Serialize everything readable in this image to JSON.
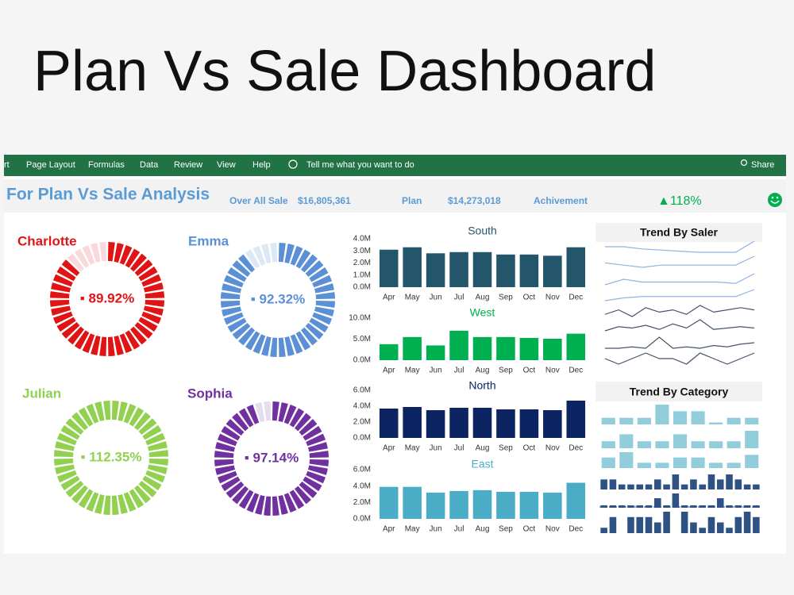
{
  "title": "Plan Vs Sale Dashboard",
  "ribbon": {
    "items": [
      "rt",
      "Page Layout",
      "Formulas",
      "Data",
      "Review",
      "View",
      "Help"
    ],
    "search": "Tell me what you want to do",
    "share": "Share"
  },
  "summary": {
    "title": "For Plan Vs Sale Analysis",
    "items": [
      {
        "label": "Over All Sale",
        "value": "$16,805,361"
      },
      {
        "label": "Plan",
        "value": "$14,273,018"
      },
      {
        "label": "Achivement",
        "value": "▲118%"
      }
    ]
  },
  "donuts": [
    {
      "name": "Charlotte",
      "value": 89.92,
      "value_label": "▪ 89.92%",
      "color": "#e01414",
      "track_color": "#f9d9dc"
    },
    {
      "name": "Emma",
      "value": 92.32,
      "value_label": "▪ 92.32%",
      "color": "#5b8fd6",
      "track_color": "#dde8f6"
    },
    {
      "name": "Julian",
      "value": 112.35,
      "value_label": "▪ 112.35%",
      "color": "#92d050",
      "track_color": "#e8f4dc"
    },
    {
      "name": "Sophia",
      "value": 97.14,
      "value_label": "▪ 97.14%",
      "color": "#7030a0",
      "track_color": "#e6dcf0"
    }
  ],
  "chart_data": [
    {
      "type": "bar",
      "title": "South",
      "color": "#23566a",
      "categories": [
        "Apr",
        "May",
        "Jun",
        "Jul",
        "Aug",
        "Sep",
        "Oct",
        "Nov",
        "Dec"
      ],
      "values": [
        3.1,
        3.3,
        2.8,
        2.9,
        2.9,
        2.7,
        2.7,
        2.6,
        3.3
      ],
      "ylim": [
        0,
        4
      ],
      "yticks": [
        {
          "value": 0,
          "label": "0.0M"
        },
        {
          "value": 1,
          "label": "1.0M"
        },
        {
          "value": 2,
          "label": "2.0M"
        },
        {
          "value": 3,
          "label": "3.0M"
        },
        {
          "value": 4,
          "label": "4.0M"
        }
      ]
    },
    {
      "type": "bar",
      "title": "West",
      "color": "#00b050",
      "categories": [
        "Apr",
        "May",
        "Jun",
        "Jul",
        "Aug",
        "Sep",
        "Oct",
        "Nov",
        "Dec"
      ],
      "values": [
        3.8,
        5.5,
        3.5,
        7,
        5.5,
        5.5,
        5.3,
        5.1,
        6.3
      ],
      "ylim": [
        0,
        10
      ],
      "yticks": [
        {
          "value": 0,
          "label": "0.0M"
        },
        {
          "value": 5,
          "label": "5.0M"
        },
        {
          "value": 10,
          "label": "10.0M"
        }
      ]
    },
    {
      "type": "bar",
      "title": "North",
      "color": "#0c2462",
      "categories": [
        "Apr",
        "May",
        "Jun",
        "Jul",
        "Aug",
        "Sep",
        "Oct",
        "Nov",
        "Dec"
      ],
      "values": [
        3.7,
        3.9,
        3.5,
        3.8,
        3.8,
        3.6,
        3.6,
        3.5,
        4.7
      ],
      "ylim": [
        0,
        6
      ],
      "yticks": [
        {
          "value": 0,
          "label": "0.0M"
        },
        {
          "value": 2,
          "label": "2.0M"
        },
        {
          "value": 4,
          "label": "4.0M"
        },
        {
          "value": 6,
          "label": "6.0M"
        }
      ]
    },
    {
      "type": "bar",
      "title": "East",
      "color": "#4bacc6",
      "categories": [
        "Apr",
        "May",
        "Jun",
        "Jul",
        "Aug",
        "Sep",
        "Oct",
        "Nov",
        "Dec"
      ],
      "values": [
        3.9,
        3.9,
        3.2,
        3.4,
        3.5,
        3.3,
        3.3,
        3.2,
        4.4
      ],
      "ylim": [
        0,
        6
      ],
      "yticks": [
        {
          "value": 0,
          "label": "0.0M"
        },
        {
          "value": 2,
          "label": "2.0M"
        },
        {
          "value": 4,
          "label": "4.0M"
        },
        {
          "value": 6,
          "label": "6.0M"
        }
      ]
    }
  ],
  "trend_by_saler": {
    "title": "Trend By Saler",
    "lines": [
      {
        "color": "#8eb4e3",
        "values": [
          5,
          5,
          4.8,
          4.7,
          4.6,
          4.5,
          4.5,
          4.5,
          5.5
        ]
      },
      {
        "color": "#8eb4e3",
        "values": [
          5,
          4.8,
          4.6,
          4.8,
          4.8,
          4.8,
          4.8,
          4.8,
          5.6
        ]
      },
      {
        "color": "#8eb4e3",
        "values": [
          4.6,
          5,
          4.8,
          4.8,
          4.8,
          4.8,
          4.8,
          4.7,
          5.4
        ]
      },
      {
        "color": "#8eb4e3",
        "values": [
          4.5,
          4.7,
          4.8,
          4.8,
          4.8,
          4.8,
          4.8,
          4.8,
          5.3
        ]
      },
      {
        "color": "#44546a",
        "values": [
          5,
          5.2,
          4.9,
          5.3,
          5.1,
          5.2,
          5,
          5.4,
          5.1,
          5.2,
          5.3,
          5.2
        ]
      },
      {
        "color": "#44546a",
        "values": [
          4.8,
          5.1,
          5,
          5.2,
          4.9,
          5.3,
          5,
          5.6,
          4.9,
          5,
          5.1,
          5
        ]
      },
      {
        "color": "#44546a",
        "values": [
          5,
          5,
          5.1,
          5,
          5.8,
          5,
          5.1,
          5,
          5.2,
          5.1,
          5.3,
          5.4
        ]
      },
      {
        "color": "#44546a",
        "values": [
          5,
          4.9,
          5,
          5.1,
          5,
          5,
          4.9,
          5.1,
          5,
          4.9,
          5,
          5.1
        ]
      }
    ]
  },
  "trend_by_category": {
    "title": "Trend By Category",
    "rows": [
      {
        "color": "#92cddc",
        "values": [
          1,
          1,
          1,
          3,
          2,
          2,
          0.3,
          1,
          1
        ]
      },
      {
        "color": "#92cddc",
        "values": [
          1,
          2,
          1,
          1,
          2,
          1,
          1,
          1,
          2.5
        ]
      },
      {
        "color": "#92cddc",
        "values": [
          2,
          3,
          1,
          1,
          2,
          2,
          1,
          1,
          2.5
        ]
      },
      {
        "color": "#2e5284",
        "values": [
          2,
          2,
          1,
          1,
          1,
          1,
          2,
          1,
          3,
          1,
          2,
          1,
          3,
          2,
          3,
          2,
          1,
          1
        ]
      },
      {
        "color": "#2e5284",
        "values": [
          0.5,
          0.5,
          0.5,
          0.5,
          0.5,
          0.5,
          2,
          0.5,
          3,
          0.5,
          0.5,
          0.5,
          0.5,
          2,
          0.5,
          0.5,
          0.5,
          0.5
        ]
      },
      {
        "color": "#2e5284",
        "values": [
          1,
          3,
          0,
          3,
          3,
          3,
          2,
          4,
          0,
          4,
          2,
          1,
          3,
          2,
          1,
          3,
          4,
          3
        ]
      }
    ]
  }
}
